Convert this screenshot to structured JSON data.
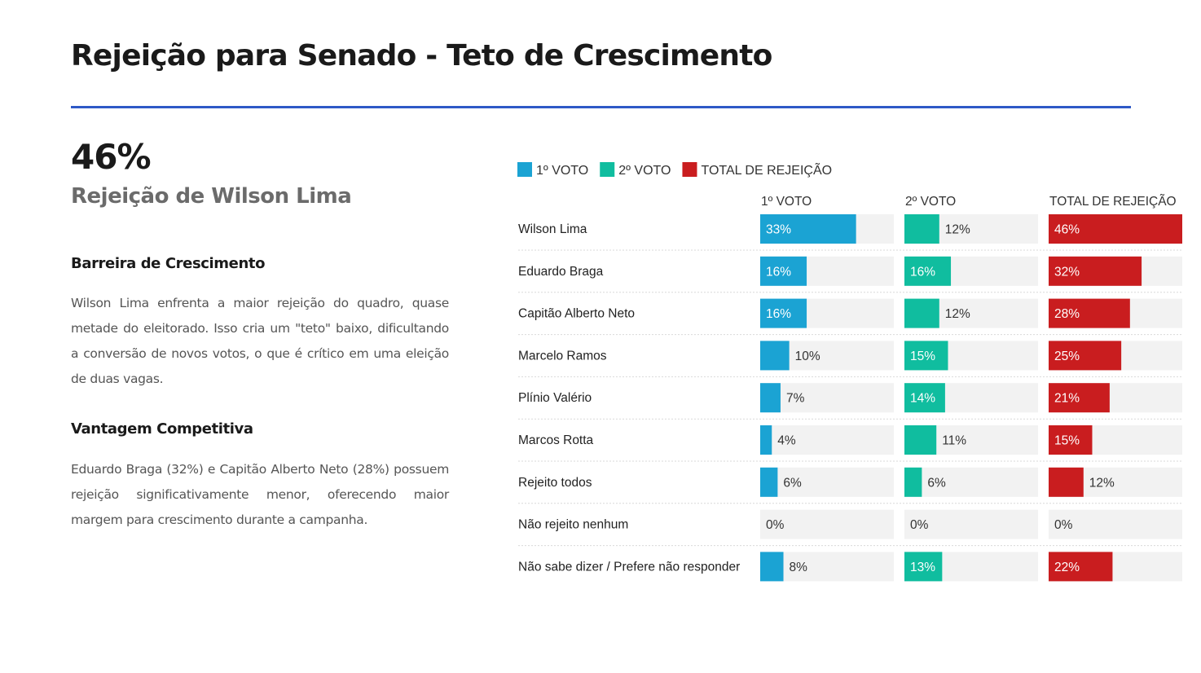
{
  "page": {
    "title": "Rejeição para Senado - Teto de Crescimento",
    "highlight_value": "46%",
    "highlight_label": "Rejeição de Wilson Lima",
    "sections": [
      {
        "heading": "Barreira de Crescimento",
        "text": "Wilson Lima enfrenta a maior rejeição do quadro, quase metade do eleitorado. Isso cria um \"teto\" baixo, dificultando a conversão de novos votos, o que é crítico em uma eleição de duas vagas."
      },
      {
        "heading": "Vantagem Competitiva",
        "text": "Eduardo Braga (32%) e Capitão Alberto Neto (28%) possuem rejeição significativamente menor, oferecendo maior margem para crescimento durante a campanha."
      }
    ]
  },
  "colors": {
    "accent_rule": "#2e59c6",
    "primeiro_voto": "#1ba3d3",
    "segundo_voto": "#10bd9f",
    "total": "#c91d1f",
    "track": "#f2f2f2"
  },
  "chart_data": {
    "type": "bar",
    "orientation": "horizontal",
    "layout": "small-multiples",
    "legend": [
      "1º VOTO",
      "2º VOTO",
      "TOTAL DE REJEIÇÃO"
    ],
    "legend_position": "top-left",
    "categories": [
      "Wilson Lima",
      "Eduardo Braga",
      "Capitão Alberto Neto",
      "Marcelo Ramos",
      "Plínio Valério",
      "Marcos Rotta",
      "Rejeito todos",
      "Não rejeito nenhum",
      "Não sabe dizer / Prefere não responder"
    ],
    "series": [
      {
        "name": "1º VOTO",
        "color": "#1ba3d3",
        "values": [
          33,
          16,
          16,
          10,
          7,
          4,
          6,
          0,
          8
        ]
      },
      {
        "name": "2º VOTO",
        "color": "#10bd9f",
        "values": [
          12,
          16,
          12,
          15,
          14,
          11,
          6,
          0,
          13
        ]
      },
      {
        "name": "TOTAL DE REJEIÇÃO",
        "color": "#c91d1f",
        "values": [
          46,
          32,
          28,
          25,
          21,
          15,
          12,
          0,
          22
        ]
      }
    ],
    "value_suffix": "%",
    "xlim": [
      0,
      46
    ],
    "grid": false
  }
}
